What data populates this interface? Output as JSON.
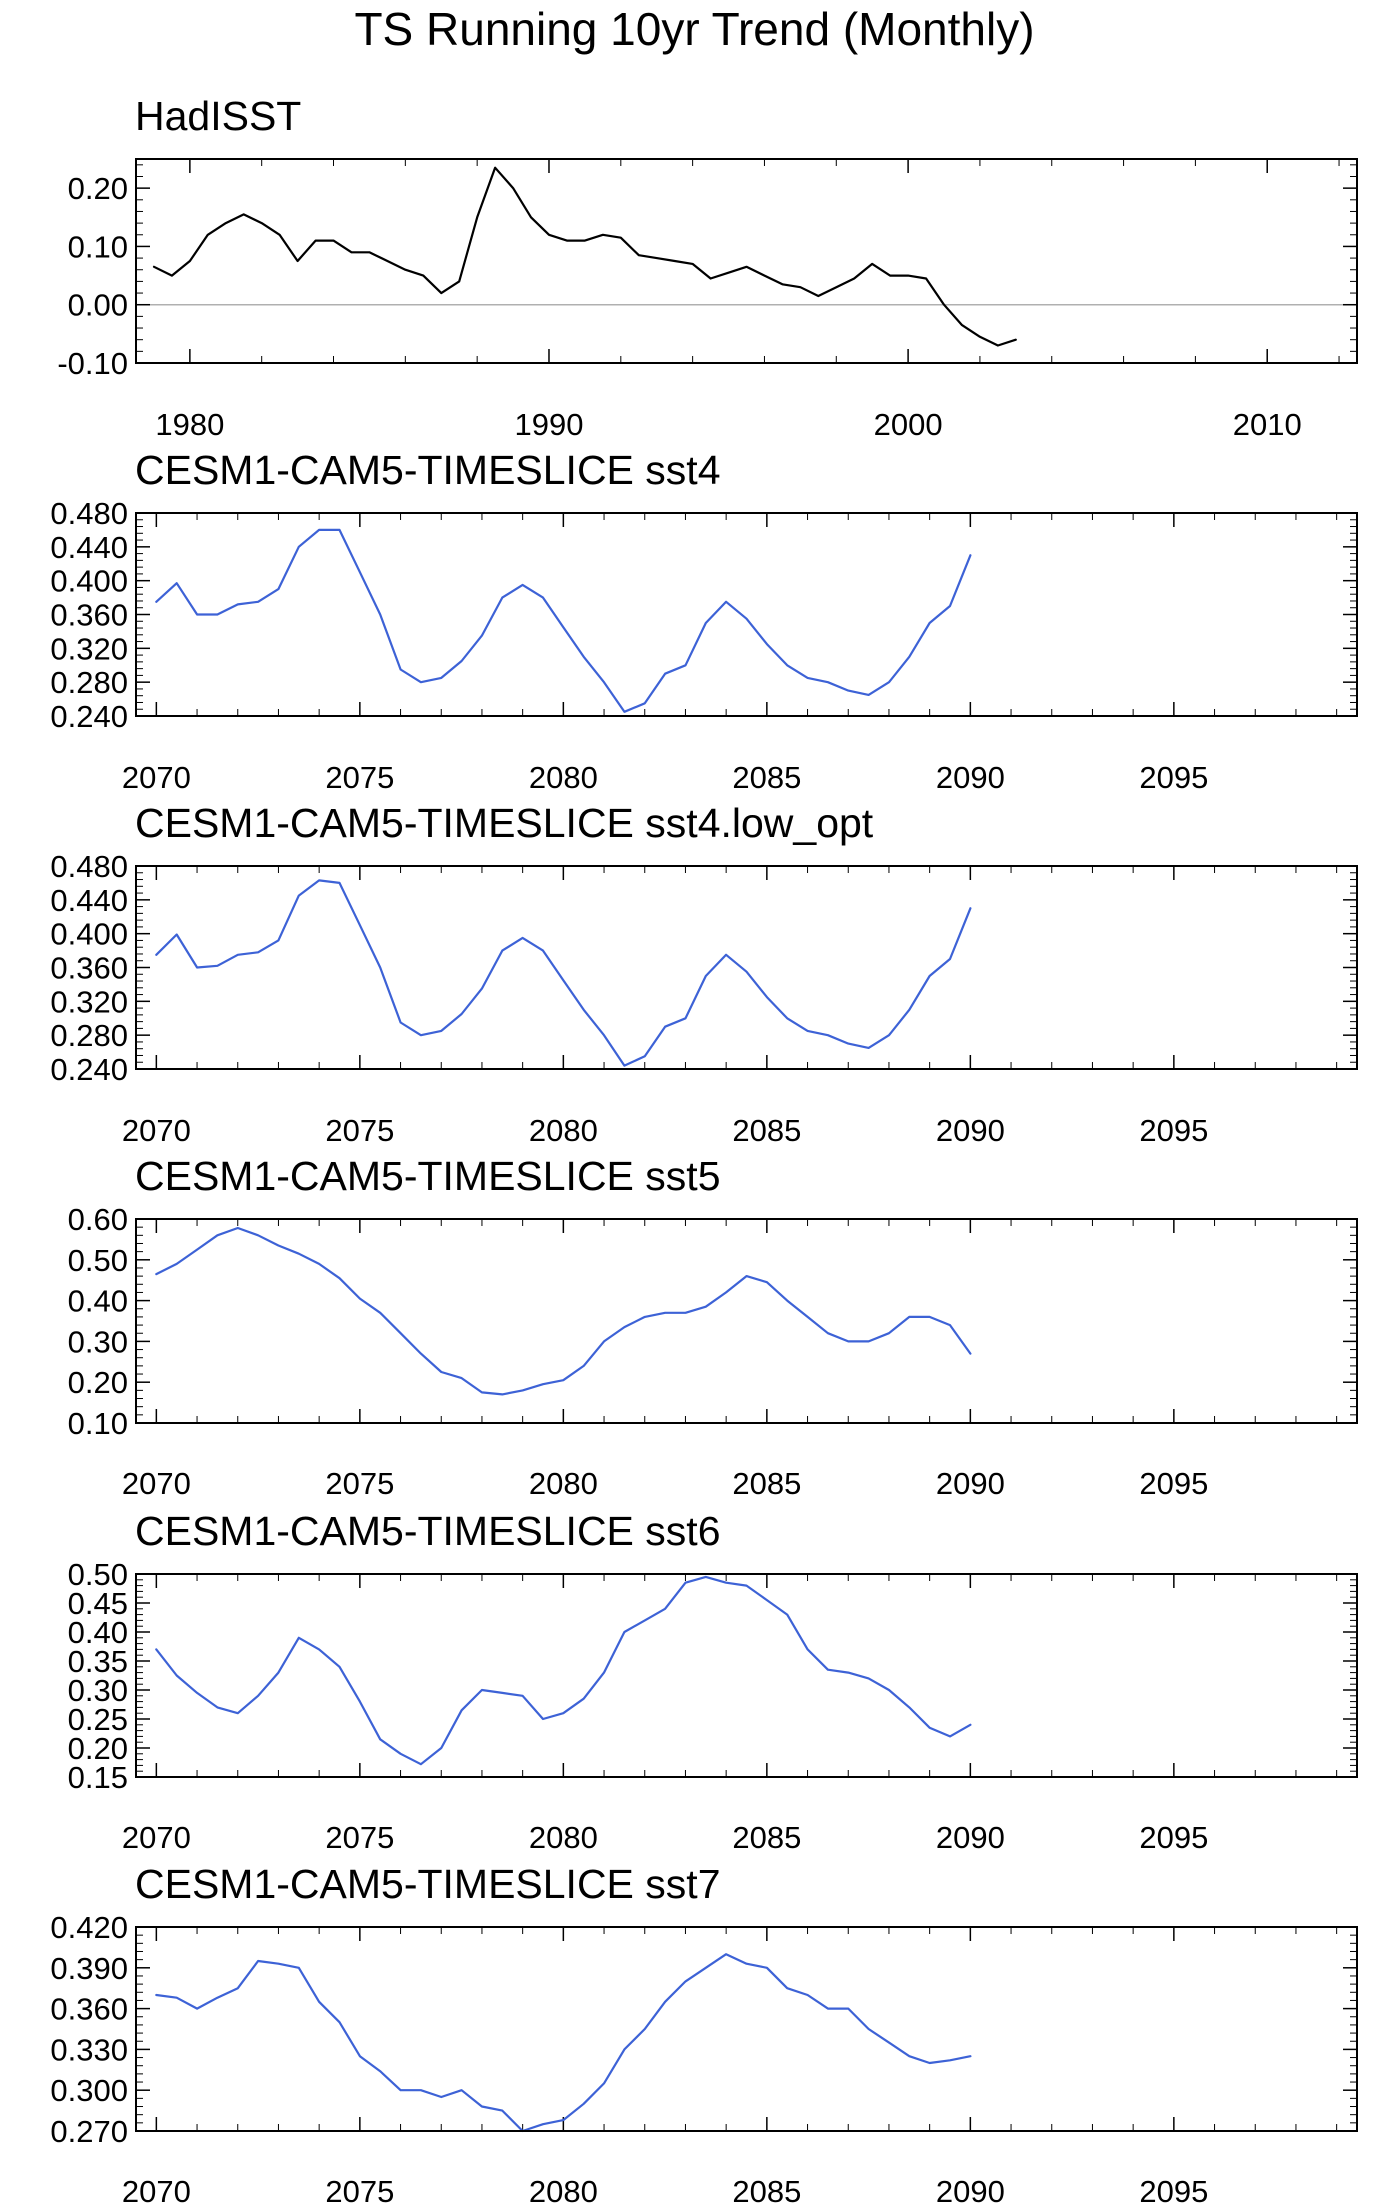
{
  "title": "TS Running 10yr Trend (Monthly)",
  "colors": {
    "observed": "#000000",
    "model": "#3d62d6",
    "zero_line": "#b0b0b0"
  },
  "chart_data": [
    {
      "type": "line",
      "title": "HadISST",
      "xlim": [
        1978.5,
        2012.5
      ],
      "ylim": [
        -0.1,
        0.25
      ],
      "xticks": [
        1980,
        1990,
        2000,
        2010
      ],
      "yticks": [
        -0.1,
        0.0,
        0.1,
        0.2
      ],
      "ytick_labels": [
        "-0.10",
        "0.00",
        "0.10",
        "0.20"
      ],
      "zero_line": true,
      "color": "observed",
      "x": [
        1979.0,
        1979.5,
        1980.0,
        1980.5,
        1981.0,
        1981.5,
        1982.0,
        1982.5,
        1983.0,
        1983.5,
        1984.0,
        1984.5,
        1985.0,
        1985.5,
        1986.0,
        1986.5,
        1987.0,
        1987.5,
        1988.0,
        1988.5,
        1989.0,
        1989.5,
        1990.0,
        1990.5,
        1991.0,
        1991.5,
        1992.0,
        1992.5,
        1993.0,
        1993.5,
        1994.0,
        1994.5,
        1995.0,
        1995.5,
        1996.0,
        1996.5,
        1997.0,
        1997.5,
        1998.0,
        1998.5,
        1999.0,
        1999.5,
        2000.0,
        2000.5,
        2001.0,
        2001.5,
        2002.0,
        2002.5,
        2003.0
      ],
      "y": [
        0.065,
        0.05,
        0.075,
        0.12,
        0.14,
        0.155,
        0.14,
        0.12,
        0.075,
        0.11,
        0.11,
        0.09,
        0.09,
        0.075,
        0.06,
        0.05,
        0.02,
        0.04,
        0.15,
        0.235,
        0.2,
        0.15,
        0.12,
        0.11,
        0.11,
        0.12,
        0.115,
        0.085,
        0.08,
        0.075,
        0.07,
        0.045,
        0.055,
        0.065,
        0.05,
        0.035,
        0.03,
        0.015,
        0.03,
        0.045,
        0.07,
        0.05,
        0.05,
        0.045,
        0.0,
        -0.035,
        -0.055,
        -0.07,
        -0.06
      ]
    },
    {
      "type": "line",
      "title": "CESM1-CAM5-TIMESLICE sst4",
      "xlim": [
        2069.5,
        2099.5
      ],
      "ylim": [
        0.24,
        0.48
      ],
      "xticks": [
        2070,
        2075,
        2080,
        2085,
        2090,
        2095
      ],
      "yticks": [
        0.24,
        0.28,
        0.32,
        0.36,
        0.4,
        0.44,
        0.48
      ],
      "ytick_labels": [
        "0.240",
        "0.280",
        "0.320",
        "0.360",
        "0.400",
        "0.440",
        "0.480"
      ],
      "color": "model",
      "x": [
        2070.0,
        2070.5,
        2071.0,
        2071.5,
        2072.0,
        2072.5,
        2073.0,
        2073.5,
        2074.0,
        2074.5,
        2075.0,
        2075.5,
        2076.0,
        2076.5,
        2077.0,
        2077.5,
        2078.0,
        2078.5,
        2079.0,
        2079.5,
        2080.0,
        2080.5,
        2081.0,
        2081.5,
        2082.0,
        2082.5,
        2083.0,
        2083.5,
        2084.0,
        2084.5,
        2085.0,
        2085.5,
        2086.0,
        2086.5,
        2087.0,
        2087.5,
        2088.0,
        2088.5,
        2089.0,
        2089.5,
        2090.0
      ],
      "y": [
        0.375,
        0.397,
        0.36,
        0.36,
        0.372,
        0.375,
        0.39,
        0.44,
        0.46,
        0.46,
        0.41,
        0.36,
        0.295,
        0.28,
        0.285,
        0.305,
        0.335,
        0.38,
        0.395,
        0.38,
        0.345,
        0.31,
        0.28,
        0.245,
        0.255,
        0.29,
        0.3,
        0.35,
        0.375,
        0.355,
        0.325,
        0.3,
        0.285,
        0.28,
        0.27,
        0.265,
        0.28,
        0.31,
        0.35,
        0.37,
        0.43
      ]
    },
    {
      "type": "line",
      "title": "CESM1-CAM5-TIMESLICE sst4.low_opt",
      "xlim": [
        2069.5,
        2099.5
      ],
      "ylim": [
        0.24,
        0.48
      ],
      "xticks": [
        2070,
        2075,
        2080,
        2085,
        2090,
        2095
      ],
      "yticks": [
        0.24,
        0.28,
        0.32,
        0.36,
        0.4,
        0.44,
        0.48
      ],
      "ytick_labels": [
        "0.240",
        "0.280",
        "0.320",
        "0.360",
        "0.400",
        "0.440",
        "0.480"
      ],
      "color": "model",
      "x": [
        2070.0,
        2070.5,
        2071.0,
        2071.5,
        2072.0,
        2072.5,
        2073.0,
        2073.5,
        2074.0,
        2074.5,
        2075.0,
        2075.5,
        2076.0,
        2076.5,
        2077.0,
        2077.5,
        2078.0,
        2078.5,
        2079.0,
        2079.5,
        2080.0,
        2080.5,
        2081.0,
        2081.5,
        2082.0,
        2082.5,
        2083.0,
        2083.5,
        2084.0,
        2084.5,
        2085.0,
        2085.5,
        2086.0,
        2086.5,
        2087.0,
        2087.5,
        2088.0,
        2088.5,
        2089.0,
        2089.5,
        2090.0
      ],
      "y": [
        0.375,
        0.399,
        0.36,
        0.362,
        0.375,
        0.378,
        0.392,
        0.445,
        0.463,
        0.46,
        0.41,
        0.36,
        0.295,
        0.28,
        0.285,
        0.305,
        0.335,
        0.38,
        0.395,
        0.38,
        0.345,
        0.31,
        0.28,
        0.244,
        0.255,
        0.29,
        0.3,
        0.35,
        0.375,
        0.355,
        0.325,
        0.3,
        0.285,
        0.28,
        0.27,
        0.265,
        0.28,
        0.31,
        0.35,
        0.37,
        0.43
      ]
    },
    {
      "type": "line",
      "title": "CESM1-CAM5-TIMESLICE sst5",
      "xlim": [
        2069.5,
        2099.5
      ],
      "ylim": [
        0.1,
        0.6
      ],
      "xticks": [
        2070,
        2075,
        2080,
        2085,
        2090,
        2095
      ],
      "yticks": [
        0.1,
        0.2,
        0.3,
        0.4,
        0.5,
        0.6
      ],
      "ytick_labels": [
        "0.10",
        "0.20",
        "0.30",
        "0.40",
        "0.50",
        "0.60"
      ],
      "color": "model",
      "x": [
        2070.0,
        2070.5,
        2071.0,
        2071.5,
        2072.0,
        2072.5,
        2073.0,
        2073.5,
        2074.0,
        2074.5,
        2075.0,
        2075.5,
        2076.0,
        2076.5,
        2077.0,
        2077.5,
        2078.0,
        2078.5,
        2079.0,
        2079.5,
        2080.0,
        2080.5,
        2081.0,
        2081.5,
        2082.0,
        2082.5,
        2083.0,
        2083.5,
        2084.0,
        2084.5,
        2085.0,
        2085.5,
        2086.0,
        2086.5,
        2087.0,
        2087.5,
        2088.0,
        2088.5,
        2089.0,
        2089.5,
        2090.0
      ],
      "y": [
        0.465,
        0.49,
        0.525,
        0.56,
        0.578,
        0.56,
        0.535,
        0.515,
        0.49,
        0.455,
        0.405,
        0.37,
        0.32,
        0.27,
        0.225,
        0.21,
        0.175,
        0.17,
        0.18,
        0.195,
        0.205,
        0.24,
        0.3,
        0.335,
        0.36,
        0.37,
        0.37,
        0.385,
        0.42,
        0.46,
        0.445,
        0.4,
        0.36,
        0.32,
        0.3,
        0.3,
        0.32,
        0.36,
        0.36,
        0.34,
        0.27
      ]
    },
    {
      "type": "line",
      "title": "CESM1-CAM5-TIMESLICE sst6",
      "xlim": [
        2069.5,
        2099.5
      ],
      "ylim": [
        0.15,
        0.5
      ],
      "xticks": [
        2070,
        2075,
        2080,
        2085,
        2090,
        2095
      ],
      "yticks": [
        0.15,
        0.2,
        0.25,
        0.3,
        0.35,
        0.4,
        0.45,
        0.5
      ],
      "ytick_labels": [
        "0.15",
        "0.20",
        "0.25",
        "0.30",
        "0.35",
        "0.40",
        "0.45",
        "0.50"
      ],
      "color": "model",
      "x": [
        2070.0,
        2070.5,
        2071.0,
        2071.5,
        2072.0,
        2072.5,
        2073.0,
        2073.5,
        2074.0,
        2074.5,
        2075.0,
        2075.5,
        2076.0,
        2076.5,
        2077.0,
        2077.5,
        2078.0,
        2078.5,
        2079.0,
        2079.5,
        2080.0,
        2080.5,
        2081.0,
        2081.5,
        2082.0,
        2082.5,
        2083.0,
        2083.5,
        2084.0,
        2084.5,
        2085.0,
        2085.5,
        2086.0,
        2086.5,
        2087.0,
        2087.5,
        2088.0,
        2088.5,
        2089.0,
        2089.5,
        2090.0
      ],
      "y": [
        0.37,
        0.325,
        0.295,
        0.27,
        0.26,
        0.29,
        0.33,
        0.39,
        0.37,
        0.34,
        0.28,
        0.215,
        0.19,
        0.172,
        0.2,
        0.265,
        0.3,
        0.295,
        0.29,
        0.25,
        0.26,
        0.285,
        0.33,
        0.4,
        0.42,
        0.44,
        0.485,
        0.495,
        0.485,
        0.48,
        0.455,
        0.43,
        0.37,
        0.335,
        0.33,
        0.32,
        0.3,
        0.27,
        0.235,
        0.22,
        0.24
      ]
    },
    {
      "type": "line",
      "title": "CESM1-CAM5-TIMESLICE sst7",
      "xlim": [
        2069.5,
        2099.5
      ],
      "ylim": [
        0.27,
        0.42
      ],
      "xticks": [
        2070,
        2075,
        2080,
        2085,
        2090,
        2095
      ],
      "yticks": [
        0.27,
        0.3,
        0.33,
        0.36,
        0.39,
        0.42
      ],
      "ytick_labels": [
        "0.270",
        "0.300",
        "0.330",
        "0.360",
        "0.390",
        "0.420"
      ],
      "color": "model",
      "x": [
        2070.0,
        2070.5,
        2071.0,
        2071.5,
        2072.0,
        2072.5,
        2073.0,
        2073.5,
        2074.0,
        2074.5,
        2075.0,
        2075.5,
        2076.0,
        2076.5,
        2077.0,
        2077.5,
        2078.0,
        2078.5,
        2079.0,
        2079.5,
        2080.0,
        2080.5,
        2081.0,
        2081.5,
        2082.0,
        2082.5,
        2083.0,
        2083.5,
        2084.0,
        2084.5,
        2085.0,
        2085.5,
        2086.0,
        2086.5,
        2087.0,
        2087.5,
        2088.0,
        2088.5,
        2089.0,
        2089.5,
        2090.0
      ],
      "y": [
        0.37,
        0.368,
        0.36,
        0.368,
        0.375,
        0.395,
        0.393,
        0.39,
        0.365,
        0.35,
        0.325,
        0.314,
        0.3,
        0.3,
        0.295,
        0.3,
        0.288,
        0.285,
        0.27,
        0.275,
        0.278,
        0.29,
        0.305,
        0.33,
        0.345,
        0.365,
        0.38,
        0.39,
        0.4,
        0.393,
        0.39,
        0.375,
        0.37,
        0.36,
        0.36,
        0.345,
        0.335,
        0.325,
        0.32,
        0.322,
        0.325
      ]
    }
  ]
}
